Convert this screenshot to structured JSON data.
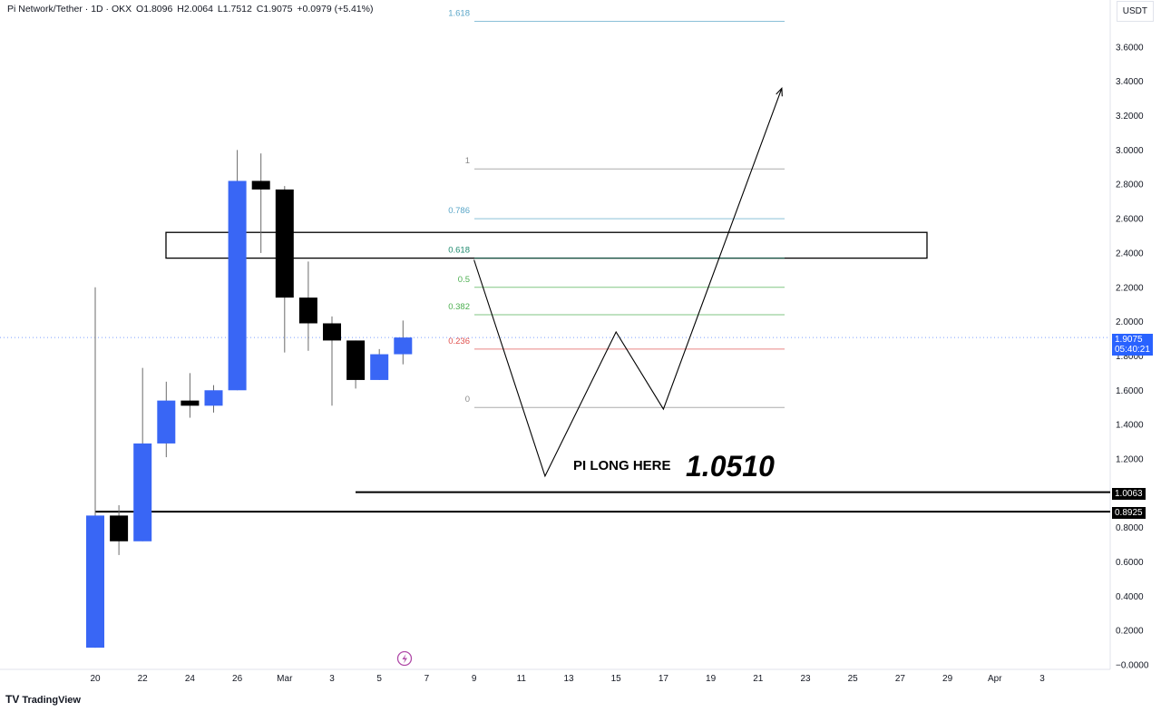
{
  "header": {
    "symbol": "Pi Network/Tether · 1D · OKX",
    "open": "O1.8096",
    "high": "H2.0064",
    "low": "L1.7512",
    "close": "C1.9075",
    "change": "+0.0979 (+5.41%)"
  },
  "axis_unit": "USDT",
  "brand": "TradingView",
  "annotations": {
    "note": "PI LONG HERE",
    "target_price": "1.0510"
  },
  "price_tags": {
    "current": "1.9075",
    "countdown": "05:40:21",
    "level_a": "1.0063",
    "level_b": "0.8925"
  },
  "colors": {
    "up": "#3966f5",
    "down": "#000000",
    "accent": "#2962ff"
  },
  "chart_data": {
    "type": "candlestick",
    "ylim": [
      0,
      3.7
    ],
    "y_ticks": [
      "3.6000",
      "3.4000",
      "3.2000",
      "3.0000",
      "2.8000",
      "2.6000",
      "2.4000",
      "2.2000",
      "2.0000",
      "1.8000",
      "1.6000",
      "1.4000",
      "1.2000",
      "1.0000",
      "0.8000",
      "0.6000",
      "0.4000",
      "0.2000",
      "−0.0000"
    ],
    "x_ticks": [
      "20",
      "22",
      "24",
      "26",
      "Mar",
      "3",
      "5",
      "7",
      "9",
      "11",
      "13",
      "15",
      "17",
      "19",
      "21",
      "23",
      "25",
      "27",
      "29",
      "Apr",
      "3"
    ],
    "candles": [
      {
        "date": "Feb 20",
        "open": 0.1,
        "high": 2.2,
        "low": 0.1,
        "close": 0.87
      },
      {
        "date": "Feb 21",
        "open": 0.87,
        "high": 0.93,
        "low": 0.64,
        "close": 0.72
      },
      {
        "date": "Feb 22",
        "open": 0.72,
        "high": 1.73,
        "low": 0.72,
        "close": 1.29
      },
      {
        "date": "Feb 23",
        "open": 1.29,
        "high": 1.65,
        "low": 1.21,
        "close": 1.54
      },
      {
        "date": "Feb 24",
        "open": 1.54,
        "high": 1.7,
        "low": 1.44,
        "close": 1.51
      },
      {
        "date": "Feb 25",
        "open": 1.51,
        "high": 1.63,
        "low": 1.47,
        "close": 1.6
      },
      {
        "date": "Feb 26",
        "open": 1.6,
        "high": 3.0,
        "low": 1.6,
        "close": 2.82
      },
      {
        "date": "Feb 27",
        "open": 2.82,
        "high": 2.98,
        "low": 2.4,
        "close": 2.77
      },
      {
        "date": "Feb 28",
        "open": 2.77,
        "high": 2.79,
        "low": 1.82,
        "close": 2.14
      },
      {
        "date": "Mar 1",
        "open": 2.14,
        "high": 2.35,
        "low": 1.83,
        "close": 1.99
      },
      {
        "date": "Mar 2",
        "open": 1.99,
        "high": 2.03,
        "low": 1.51,
        "close": 1.89
      },
      {
        "date": "Mar 3",
        "open": 1.89,
        "high": 1.89,
        "low": 1.61,
        "close": 1.66
      },
      {
        "date": "Mar 4",
        "open": 1.66,
        "high": 1.84,
        "low": 1.66,
        "close": 1.81
      },
      {
        "date": "Mar 5",
        "open": 1.81,
        "high": 2.0064,
        "low": 1.7512,
        "close": 1.9075
      }
    ],
    "fib_levels": [
      {
        "label": "1.618",
        "price": 3.75,
        "color": "#5aa6c8"
      },
      {
        "label": "1",
        "price": 2.89,
        "color": "#8a8a8a"
      },
      {
        "label": "0.786",
        "price": 2.6,
        "color": "#5aa6c8"
      },
      {
        "label": "0.618",
        "price": 2.37,
        "color": "#1e8a6e"
      },
      {
        "label": "0.5",
        "price": 2.2,
        "color": "#4caf50"
      },
      {
        "label": "0.382",
        "price": 2.04,
        "color": "#4caf50"
      },
      {
        "label": "0.236",
        "price": 1.84,
        "color": "#e0524f"
      },
      {
        "label": "0",
        "price": 1.5,
        "color": "#8a8a8a"
      }
    ],
    "resistance_zone": [
      2.37,
      2.52
    ],
    "support_lines": [
      1.0063,
      0.8925
    ],
    "current_price": 1.9075,
    "projection_path": [
      {
        "date": "Mar 8",
        "price": 2.36
      },
      {
        "date": "Mar 11",
        "price": 1.1
      },
      {
        "date": "Mar 14",
        "price": 1.94
      },
      {
        "date": "Mar 16",
        "price": 1.49
      },
      {
        "date": "Mar 21",
        "price": 3.36
      }
    ]
  }
}
